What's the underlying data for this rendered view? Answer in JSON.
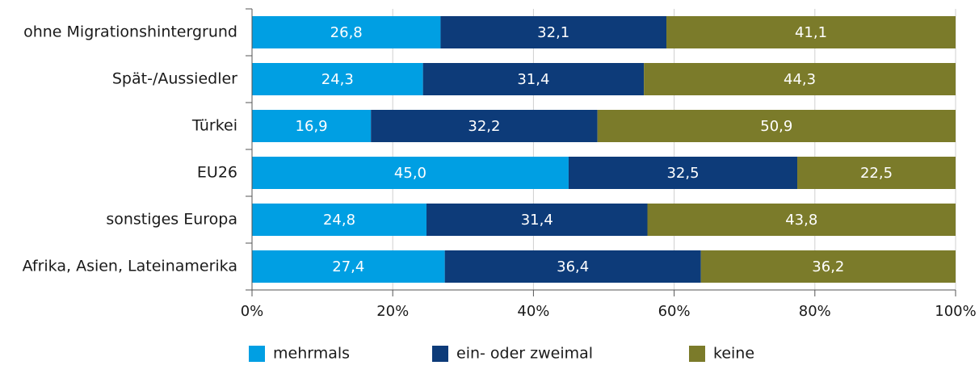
{
  "chart_data": {
    "type": "stacked_barh",
    "categories": [
      "ohne Migrationshintergrund",
      "Spät-/Aussiedler",
      "Türkei",
      "EU26",
      "sonstiges Europa",
      "Afrika, Asien, Lateinamerika"
    ],
    "series": [
      {
        "name": "mehrmals",
        "color": "#009fe3",
        "values": [
          26.8,
          24.3,
          16.9,
          45.0,
          24.8,
          27.4
        ],
        "value_labels": [
          "26,8",
          "24,3",
          "16,9",
          "45,0",
          "24,8",
          "27,4"
        ]
      },
      {
        "name": "ein- oder zweimal",
        "color": "#0d3b79",
        "values": [
          32.1,
          31.4,
          32.2,
          32.5,
          31.4,
          36.4
        ],
        "value_labels": [
          "32,1",
          "31,4",
          "32,2",
          "32,5",
          "31,4",
          "36,4"
        ]
      },
      {
        "name": "keine",
        "color": "#7b7b2a",
        "values": [
          41.1,
          44.3,
          50.9,
          22.5,
          43.8,
          36.2
        ],
        "value_labels": [
          "41,1",
          "44,3",
          "50,9",
          "22,5",
          "43,8",
          "36,2"
        ]
      }
    ],
    "xlim": [
      0,
      100
    ],
    "xticks": [
      {
        "value": 0,
        "label": "0%"
      },
      {
        "value": 20,
        "label": "20%"
      },
      {
        "value": 40,
        "label": "40%"
      },
      {
        "value": 60,
        "label": "60%"
      },
      {
        "value": 80,
        "label": "80%"
      },
      {
        "value": 100,
        "label": "100%"
      }
    ],
    "grid": true,
    "legend": "bottom"
  }
}
